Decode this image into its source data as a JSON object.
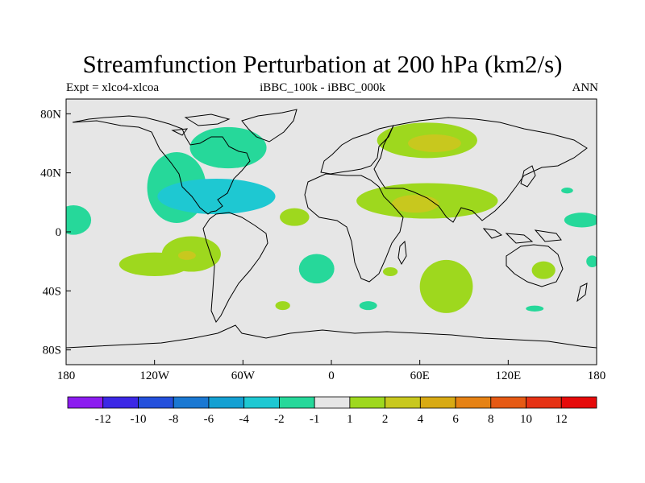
{
  "title": "Streamfunction Perturbation at 200 hPa (km2/s)",
  "left_string": "Expt = xlco4-xlcoa",
  "center_string": "iBBC_100k - iBBC_000k",
  "right_string": "ANN",
  "y_axis": {
    "ticks": [
      {
        "lat": 80,
        "label": "80N"
      },
      {
        "lat": 40,
        "label": "40N"
      },
      {
        "lat": 0,
        "label": "0"
      },
      {
        "lat": -40,
        "label": "40S"
      },
      {
        "lat": -80,
        "label": "80S"
      }
    ]
  },
  "x_axis": {
    "ticks": [
      {
        "lon": -180,
        "label": "180"
      },
      {
        "lon": -120,
        "label": "120W"
      },
      {
        "lon": -60,
        "label": "60W"
      },
      {
        "lon": 0,
        "label": "0"
      },
      {
        "lon": 60,
        "label": "60E"
      },
      {
        "lon": 120,
        "label": "120E"
      },
      {
        "lon": 180,
        "label": "180"
      }
    ]
  },
  "colorbar": {
    "colors": [
      "#8c1cf0",
      "#3c28e6",
      "#2450dc",
      "#1a78d2",
      "#14a0d2",
      "#1ec8d2",
      "#26d89a",
      "#e6e6e6",
      "#9ed81e",
      "#c8c81e",
      "#d8aa14",
      "#e68214",
      "#e65a14",
      "#e63214",
      "#e60a0a"
    ],
    "labels": [
      "-12",
      "-10",
      "-8",
      "-6",
      "-4",
      "-2",
      "-1",
      "1",
      "2",
      "4",
      "6",
      "8",
      "10",
      "12"
    ]
  },
  "chart_data": {
    "type": "filled-contour-map",
    "title": "Streamfunction Perturbation at 200 hPa (km2/s)",
    "units": "km2/s",
    "xlim": [
      -180,
      180
    ],
    "ylim": [
      -90,
      90
    ],
    "levels": [
      -12,
      -10,
      -8,
      -6,
      -4,
      -2,
      -1,
      1,
      2,
      4,
      6,
      8,
      10,
      12
    ],
    "anomalies": [
      {
        "lon": -70,
        "lat": 57,
        "value": -1.5
      },
      {
        "lon": -105,
        "lat": 30,
        "value": -1.5
      },
      {
        "lon": -78,
        "lat": 24,
        "value": -2.5
      },
      {
        "lon": -175,
        "lat": 8,
        "value": -1.5
      },
      {
        "lon": -120,
        "lat": -22,
        "value": 1.5
      },
      {
        "lon": -95,
        "lat": -15,
        "value": 1.5
      },
      {
        "lon": -98,
        "lat": -16,
        "value": 2.5
      },
      {
        "lon": -25,
        "lat": 10,
        "value": 1.5
      },
      {
        "lon": -10,
        "lat": -25,
        "value": -1.5
      },
      {
        "lon": 65,
        "lat": 62,
        "value": 1.5
      },
      {
        "lon": 70,
        "lat": 60,
        "value": 2.5
      },
      {
        "lon": 65,
        "lat": 21,
        "value": 1.5
      },
      {
        "lon": 57,
        "lat": 19,
        "value": 2.5
      },
      {
        "lon": 78,
        "lat": -37,
        "value": 1.5
      },
      {
        "lon": 40,
        "lat": -27,
        "value": 1.5
      },
      {
        "lon": 144,
        "lat": -26,
        "value": 1.5
      },
      {
        "lon": 170,
        "lat": 8,
        "value": -1.5
      },
      {
        "lon": 160,
        "lat": 28,
        "value": -1.5
      },
      {
        "lon": 177,
        "lat": -20,
        "value": -1.5
      },
      {
        "lon": 138,
        "lat": -52,
        "value": -1.5
      },
      {
        "lon": 25,
        "lat": -50,
        "value": -1.5
      },
      {
        "lon": -33,
        "lat": -50,
        "value": 1.5
      }
    ]
  }
}
